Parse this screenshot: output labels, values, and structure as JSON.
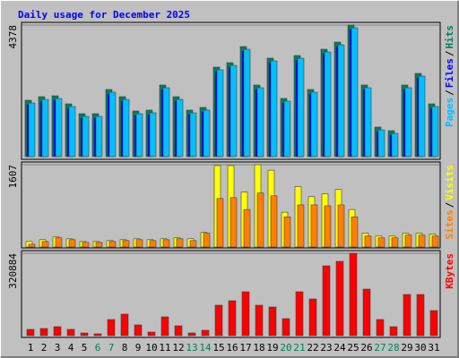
{
  "title": "Daily usage for December 2025",
  "chart_data": [
    {
      "type": "bar",
      "categories": [
        "1",
        "2",
        "3",
        "4",
        "5",
        "6",
        "7",
        "8",
        "9",
        "10",
        "11",
        "12",
        "13",
        "14",
        "15",
        "16",
        "17",
        "18",
        "19",
        "20",
        "21",
        "22",
        "23",
        "24",
        "25",
        "26",
        "27",
        "28",
        "29",
        "30",
        "31"
      ],
      "category_colors": [
        "#000000",
        "#000000",
        "#000000",
        "#000000",
        "#000000",
        "#00805c",
        "#00805c",
        "#000000",
        "#000000",
        "#000000",
        "#000000",
        "#000000",
        "#00805c",
        "#00805c",
        "#000000",
        "#000000",
        "#000000",
        "#000000",
        "#000000",
        "#00805c",
        "#00805c",
        "#000000",
        "#000000",
        "#000000",
        "#000000",
        "#000000",
        "#00805c",
        "#00805c",
        "#000000",
        "#000000",
        "#000000"
      ],
      "legend_separator": "/",
      "ylim": [
        0,
        4378
      ],
      "yticks": [
        4378
      ],
      "series": [
        {
          "name": "Hits",
          "color": "#00805c",
          "values": [
            1876,
            1995,
            2025,
            1757,
            1429,
            1429,
            2234,
            1995,
            1519,
            1549,
            2383,
            1995,
            1549,
            1638,
            2978,
            3127,
            3663,
            2383,
            3276,
            1936,
            3365,
            2234,
            3574,
            3812,
            4378,
            2383,
            983,
            864,
            2383,
            2770,
            1757
          ]
        },
        {
          "name": "Files",
          "color": "#0000ff",
          "values": [
            1726,
            1845,
            1875,
            1607,
            1279,
            1279,
            2084,
            1845,
            1369,
            1399,
            2233,
            1845,
            1399,
            1488,
            2828,
            2977,
            3513,
            2233,
            3126,
            1786,
            3215,
            2084,
            3424,
            3662,
            4228,
            2233,
            833,
            714,
            2233,
            2620,
            1607
          ]
        },
        {
          "name": "Pages",
          "color": "#00c0ff",
          "values": [
            1786,
            1905,
            1935,
            1667,
            1339,
            1339,
            2144,
            1905,
            1429,
            1459,
            2293,
            1905,
            1459,
            1548,
            2888,
            3037,
            3573,
            2293,
            3186,
            1846,
            3275,
            2144,
            3484,
            3722,
            4288,
            2293,
            893,
            774,
            2293,
            2680,
            1667
          ]
        }
      ]
    },
    {
      "type": "bar",
      "ylim": [
        0,
        1607
      ],
      "yticks": [
        1607
      ],
      "series": [
        {
          "name": "Visits",
          "color": "#ffff00",
          "values": [
            107,
            143,
            196,
            161,
            107,
            107,
            125,
            143,
            161,
            143,
            161,
            179,
            161,
            286,
            1589,
            1589,
            1072,
            1607,
            1500,
            679,
            1179,
            982,
            1036,
            1125,
            732,
            268,
            214,
            214,
            268,
            268,
            250
          ]
        },
        {
          "name": "Sites",
          "color": "#ff8000",
          "values": [
            54,
            107,
            179,
            143,
            89,
            89,
            107,
            125,
            143,
            125,
            143,
            161,
            125,
            268,
            947,
            964,
            732,
            1054,
            1000,
            589,
            822,
            822,
            804,
            822,
            589,
            214,
            179,
            179,
            232,
            232,
            214
          ]
        }
      ]
    },
    {
      "type": "bar",
      "ylim": [
        0,
        320884
      ],
      "yticks": [
        320884
      ],
      "series": [
        {
          "name": "KBytes",
          "color": "#ff0000",
          "values": [
            24416,
            27904,
            34880,
            24416,
            10464,
            6976,
            62784,
            83712,
            41856,
            13952,
            73248,
            38368,
            10464,
            20928,
            118592,
            136032,
            170912,
            118592,
            111616,
            66272,
            170912,
            143008,
            272064,
            289504,
            320884,
            181376,
            62784,
            34880,
            160448,
            160448,
            97664
          ]
        }
      ]
    }
  ]
}
